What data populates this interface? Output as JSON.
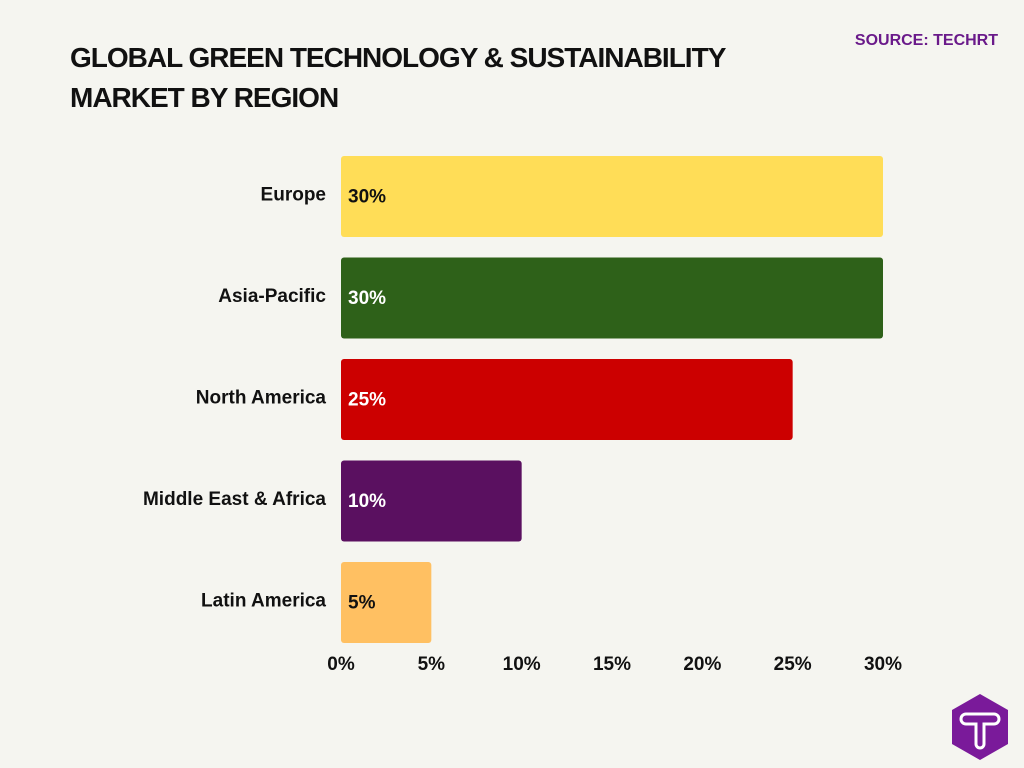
{
  "chart_data": {
    "type": "bar",
    "orientation": "horizontal",
    "title": "GLOBAL GREEN TECHNOLOGY & SUSTAINABILITY MARKET BY REGION",
    "source": "SOURCE: TECHRT",
    "categories": [
      "Europe",
      "Asia-Pacific",
      "North America",
      "Middle East & Africa",
      "Latin America"
    ],
    "values": [
      30,
      30,
      25,
      10,
      5
    ],
    "value_labels": [
      "30%",
      "30%",
      "25%",
      "10%",
      "5%"
    ],
    "colors": [
      "#FFDD57",
      "#2E6119",
      "#CC0000",
      "#5A1060",
      "#FFC062"
    ],
    "label_colors": [
      "#111111",
      "#ffffff",
      "#ffffff",
      "#ffffff",
      "#111111"
    ],
    "xlim": [
      0,
      30
    ],
    "xticks": [
      0,
      5,
      10,
      15,
      20,
      25,
      30
    ],
    "xtick_labels": [
      "0%",
      "5%",
      "10%",
      "15%",
      "20%",
      "25%",
      "30%"
    ],
    "grid": false,
    "xlabel": "",
    "ylabel": ""
  },
  "logo": {
    "icon": "techrt-hexagon-t-logo",
    "color": "#7A1A9A"
  }
}
